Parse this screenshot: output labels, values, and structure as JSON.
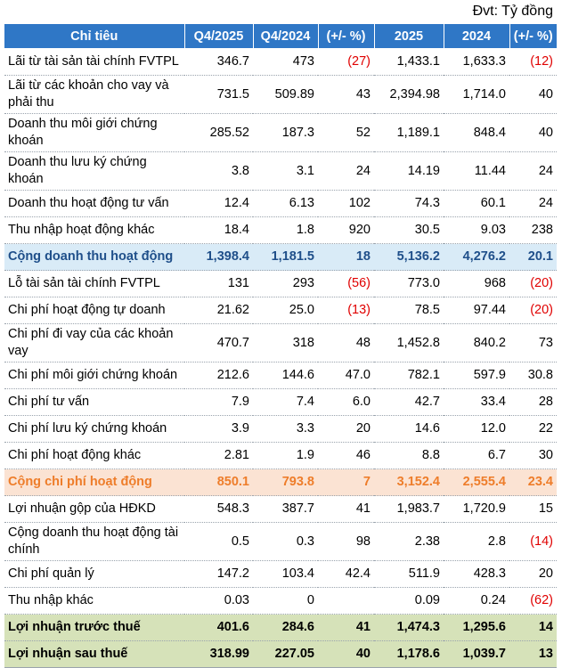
{
  "unit_note": "Đvt: Tỷ đồng",
  "columns": [
    "Chỉ tiêu",
    "Q4/2025",
    "Q4/2024",
    "(+/- %)",
    "2025",
    "2024",
    "(+/- %)"
  ],
  "rows": [
    {
      "label": "Lãi từ tài sản tài chính FVTPL",
      "q4_2025": "346.7",
      "q4_2024": "473",
      "q_change": "(27)",
      "y2025": "1,433.1",
      "y2024": "1,633.3",
      "y_change": "(12)"
    },
    {
      "label": "Lãi từ các khoản cho vay và phải thu",
      "q4_2025": "731.5",
      "q4_2024": "509.89",
      "q_change": "43",
      "y2025": "2,394.98",
      "y2024": "1,714.0",
      "y_change": "40"
    },
    {
      "label": "Doanh thu môi giới chứng khoán",
      "q4_2025": "285.52",
      "q4_2024": "187.3",
      "q_change": "52",
      "y2025": "1,189.1",
      "y2024": "848.4",
      "y_change": "40"
    },
    {
      "label": "Doanh thu lưu ký chứng khoán",
      "q4_2025": "3.8",
      "q4_2024": "3.1",
      "q_change": "24",
      "y2025": "14.19",
      "y2024": "11.44",
      "y_change": "24"
    },
    {
      "label": "Doanh thu hoạt động tư vấn",
      "q4_2025": "12.4",
      "q4_2024": "6.13",
      "q_change": "102",
      "y2025": "74.3",
      "y2024": "60.1",
      "y_change": "24"
    },
    {
      "label": "Thu nhập hoạt động khác",
      "q4_2025": "18.4",
      "q4_2024": "1.8",
      "q_change": "920",
      "y2025": "30.5",
      "y2024": "9.03",
      "y_change": "238"
    },
    {
      "label": "Cộng doanh thu hoạt động",
      "q4_2025": "1,398.4",
      "q4_2024": "1,181.5",
      "q_change": "18",
      "y2025": "5,136.2",
      "y2024": "4,276.2",
      "y_change": "20.1"
    },
    {
      "label": "Lỗ tài sản tài chính FVTPL",
      "q4_2025": "131",
      "q4_2024": "293",
      "q_change": "(56)",
      "y2025": "773.0",
      "y2024": "968",
      "y_change": "(20)"
    },
    {
      "label": "Chi phí hoạt động tự doanh",
      "q4_2025": "21.62",
      "q4_2024": "25.0",
      "q_change": "(13)",
      "y2025": "78.5",
      "y2024": "97.44",
      "y_change": "(20)"
    },
    {
      "label": "Chi phí đi vay của các khoản vay",
      "q4_2025": "470.7",
      "q4_2024": "318",
      "q_change": "48",
      "y2025": "1,452.8",
      "y2024": "840.2",
      "y_change": "73"
    },
    {
      "label": "Chi phí môi giới chứng khoán",
      "q4_2025": "212.6",
      "q4_2024": "144.6",
      "q_change": "47.0",
      "y2025": "782.1",
      "y2024": "597.9",
      "y_change": "30.8"
    },
    {
      "label": "Chi phí tư vấn",
      "q4_2025": "7.9",
      "q4_2024": "7.4",
      "q_change": "6.0",
      "y2025": "42.7",
      "y2024": "33.4",
      "y_change": "28"
    },
    {
      "label": "Chi phí lưu ký chứng khoán",
      "q4_2025": "3.9",
      "q4_2024": "3.3",
      "q_change": "20",
      "y2025": "14.6",
      "y2024": "12.0",
      "y_change": "22"
    },
    {
      "label": "Chi phí hoạt động khác",
      "q4_2025": "2.81",
      "q4_2024": "1.9",
      "q_change": "46",
      "y2025": "8.8",
      "y2024": "6.7",
      "y_change": "30"
    },
    {
      "label": "Cộng chi phí hoạt động",
      "q4_2025": "850.1",
      "q4_2024": "793.8",
      "q_change": "7",
      "y2025": "3,152.4",
      "y2024": "2,555.4",
      "y_change": "23.4"
    },
    {
      "label": "Lợi nhuận gộp của HĐKD",
      "q4_2025": "548.3",
      "q4_2024": "387.7",
      "q_change": "41",
      "y2025": "1,983.7",
      "y2024": "1,720.9",
      "y_change": "15"
    },
    {
      "label": "Cộng doanh thu hoạt động tài chính",
      "q4_2025": "0.5",
      "q4_2024": "0.3",
      "q_change": "98",
      "y2025": "2.38",
      "y2024": "2.8",
      "y_change": "(14)"
    },
    {
      "label": "Chi phí quản lý",
      "q4_2025": "147.2",
      "q4_2024": "103.4",
      "q_change": "42.4",
      "y2025": "511.9",
      "y2024": "428.3",
      "y_change": "20"
    },
    {
      "label": "Thu nhập khác",
      "q4_2025": "0.03",
      "q4_2024": "0",
      "q_change": "",
      "y2025": "0.09",
      "y2024": "0.24",
      "y_change": "(62)"
    },
    {
      "label": "Lợi nhuận trước thuế",
      "q4_2025": "401.6",
      "q4_2024": "284.6",
      "q_change": "41",
      "y2025": "1,474.3",
      "y2024": "1,295.6",
      "y_change": "14"
    },
    {
      "label": "Lợi nhuận sau thuế",
      "q4_2025": "318.99",
      "q4_2024": "227.05",
      "q_change": "40",
      "y2025": "1,178.6",
      "y2024": "1,039.7",
      "y_change": "13"
    }
  ],
  "colors": {
    "header_bg": "#2f77c6",
    "revenue_total_bg": "#d9ebf7",
    "revenue_total_text": "#1f4f8a",
    "cost_total_bg": "#fbe3d3",
    "cost_total_text": "#ee7d2a",
    "profit_bg": "#d6e2b9",
    "negative_text": "#e00000"
  }
}
